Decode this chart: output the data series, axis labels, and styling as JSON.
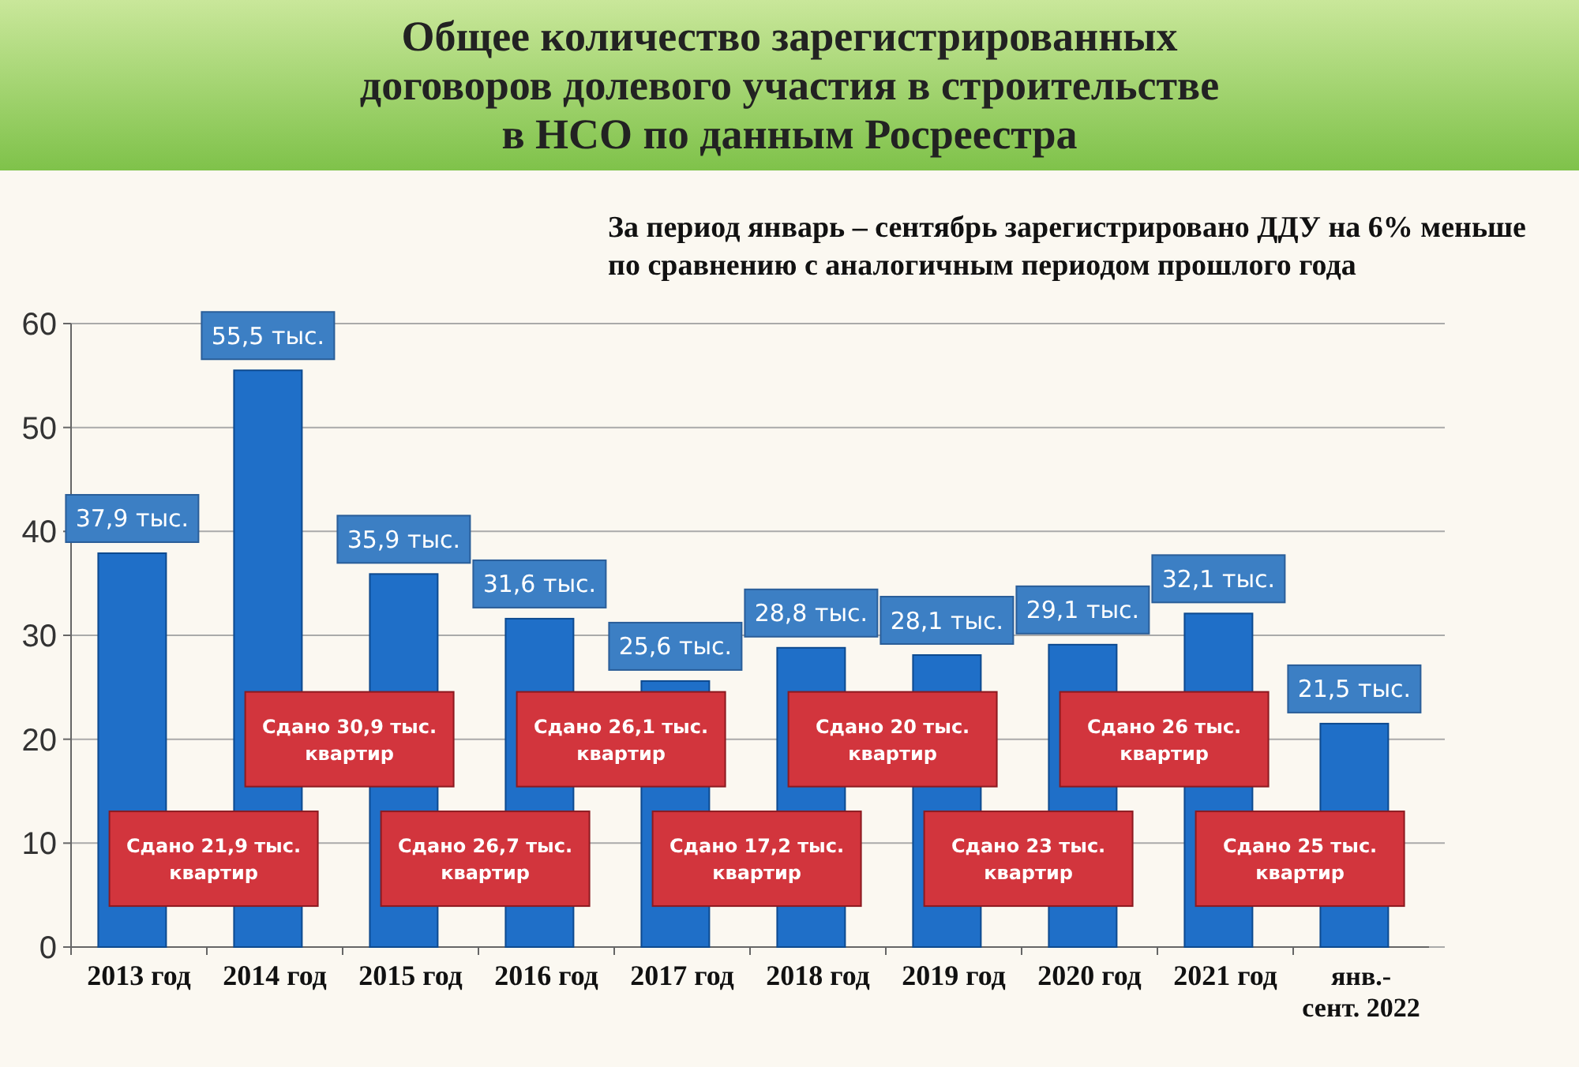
{
  "chart_data": {
    "type": "bar",
    "title": "Общее количество зарегистрированных договоров долевого участия в строительстве в НСО по данным Росреестра",
    "subtitle": "За период январь – сентябрь зарегистрировано ДДУ на 6% меньше по сравнению с аналогичным периодом прошлого года",
    "categories": [
      "2013 год",
      "2014 год",
      "2015 год",
      "2016 год",
      "2017 год",
      "2018 год",
      "2019 год",
      "2020 год",
      "2021 год",
      "янв.- сент. 2022"
    ],
    "values": [
      37.9,
      55.5,
      35.9,
      31.6,
      25.6,
      28.8,
      28.1,
      29.1,
      32.1,
      21.5
    ],
    "value_labels": [
      "37,9 тыс.",
      "55,5 тыс.",
      "35,9 тыс.",
      "31,6 тыс.",
      "25,6 тыс.",
      "28,8 тыс.",
      "28,1 тыс.",
      "29,1 тыс.",
      "32,1 тыс.",
      "21,5 тыс."
    ],
    "color": "#1f6fc8",
    "ylim": [
      0,
      60
    ],
    "yticks": [
      0,
      10,
      20,
      30,
      40,
      50,
      60
    ],
    "grid": "y",
    "annotations": [
      "Сдано 21,9 тыс. квартир",
      "Сдано 30,9 тыс. квартир",
      "Сдано 26,7 тыс. квартир",
      "Сдано 26,1 тыс. квартир",
      "Сдано 17,2 тыс. квартир",
      "Сдано 20 тыс. квартир",
      "Сдано 23 тыс. квартир",
      "Сдано 26 тыс. квартир",
      "Сдано 25 тыс. квартир"
    ]
  }
}
